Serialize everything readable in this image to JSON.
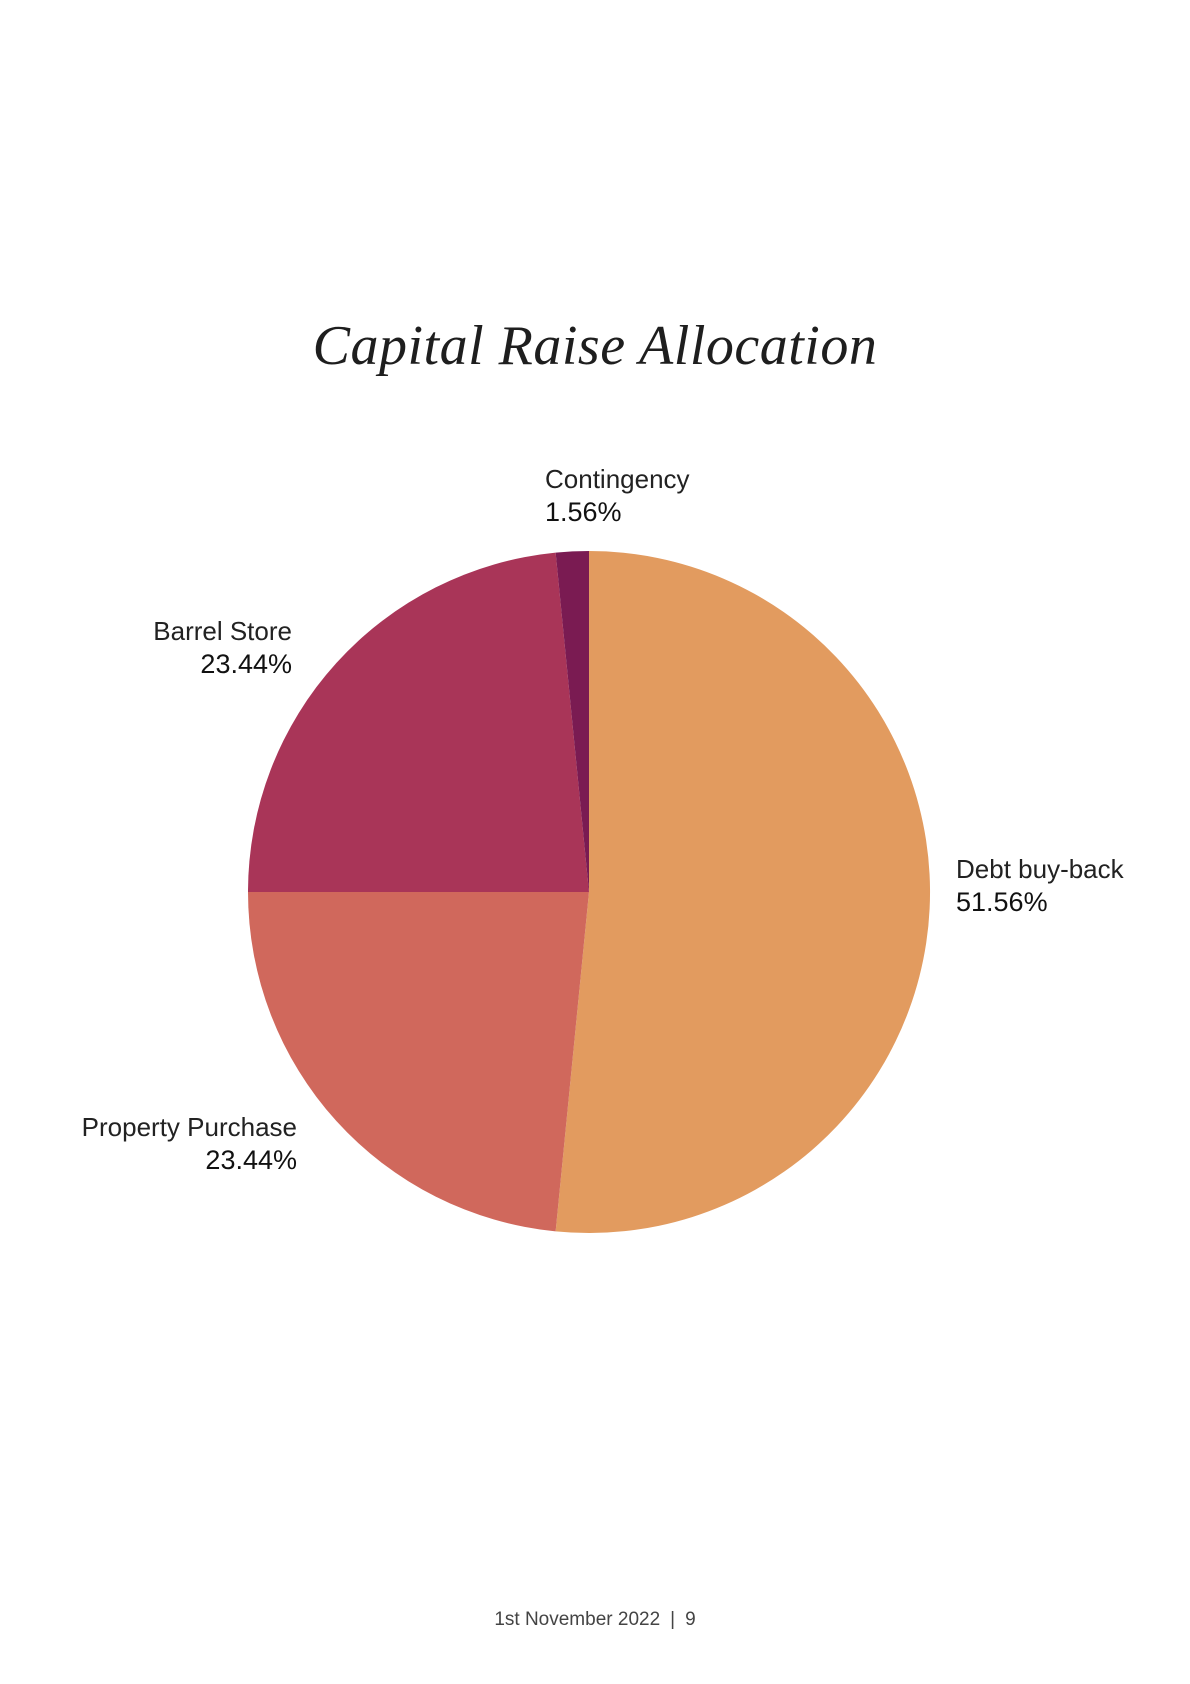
{
  "page": {
    "title": "Capital Raise Allocation",
    "footer_date": "1st November 2022",
    "footer_separator": "|",
    "footer_page": "9"
  },
  "chart_data": {
    "type": "pie",
    "title": "Capital Raise Allocation",
    "start": "top",
    "direction": "clockwise",
    "slices": [
      {
        "label": "Debt buy-back",
        "value": 51.56,
        "display": "51.56%",
        "color": "#E29B5F"
      },
      {
        "label": "Property Purchase",
        "value": 23.44,
        "display": "23.44%",
        "color": "#D0685C"
      },
      {
        "label": "Barrel Store",
        "value": 23.44,
        "display": "23.44%",
        "color": "#A93558"
      },
      {
        "label": "Contingency",
        "value": 1.56,
        "display": "1.56%",
        "color": "#7A1B52"
      }
    ]
  }
}
